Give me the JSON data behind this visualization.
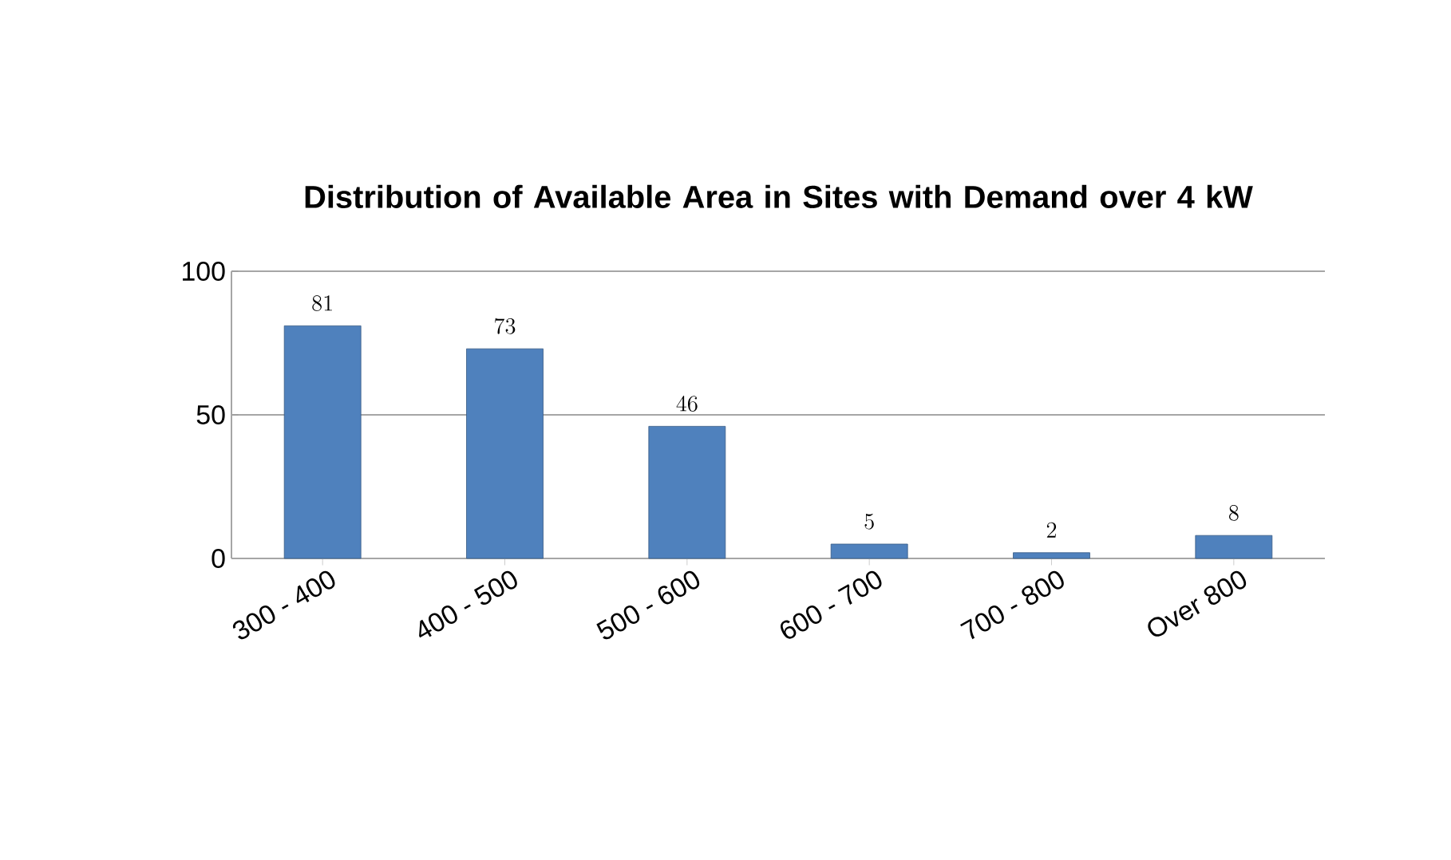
{
  "chart_data": {
    "type": "bar",
    "title": "Distribution of Available Area in Sites with Demand over 4 kW",
    "categories": [
      "300 - 400",
      "400 - 500",
      "500 - 600",
      "600 - 700",
      "700 - 800",
      "Over 800"
    ],
    "values": [
      81,
      73,
      46,
      5,
      2,
      8
    ],
    "color": "#4f81bd",
    "ylim": [
      0,
      100
    ],
    "yticks": [
      0,
      50,
      100
    ],
    "grid": "y",
    "data_labels": true
  }
}
